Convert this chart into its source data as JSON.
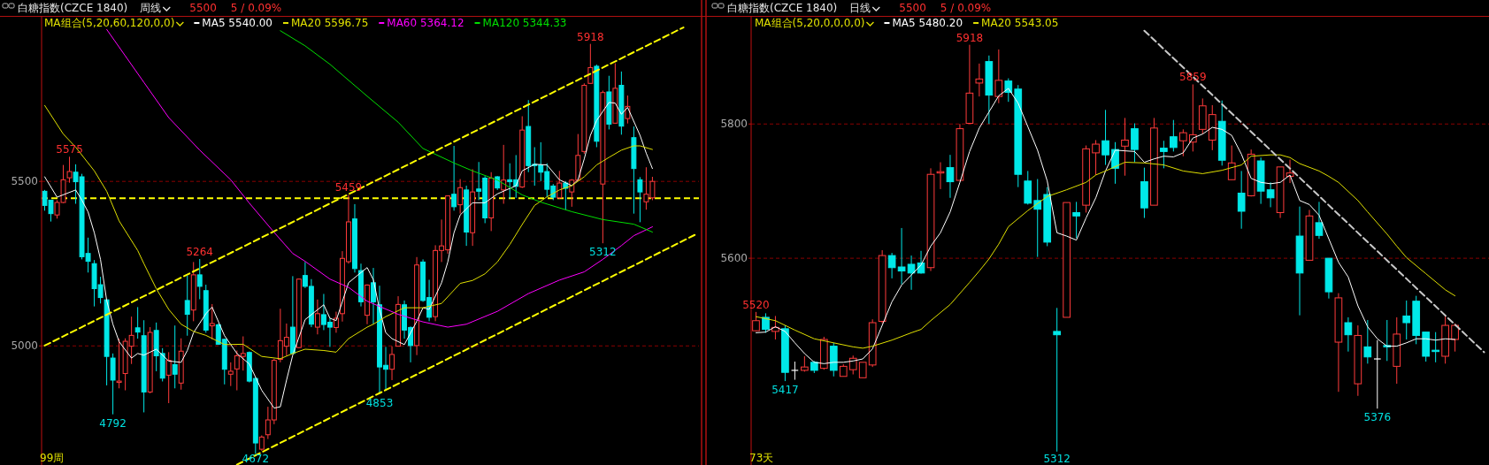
{
  "chart_data": [
    {
      "type": "candlestick",
      "title": "白糖指数(CZCE 1840)",
      "subtitle": "周线",
      "grid": "y",
      "legend": "top left",
      "tick_labels": "y",
      "marker": "none",
      "categories": [
        null,
        null,
        null,
        null,
        null,
        null,
        null,
        null,
        null,
        null,
        null,
        null,
        null,
        null,
        null,
        null,
        null,
        null,
        null,
        null,
        null,
        null,
        null,
        null,
        null,
        null,
        null,
        null,
        null,
        null,
        null,
        null,
        null,
        null,
        null,
        null,
        null,
        null,
        null,
        null,
        null,
        null,
        null,
        null,
        null,
        null,
        null,
        null,
        null,
        null,
        null,
        null,
        null,
        null,
        null,
        null,
        null,
        null,
        null,
        null,
        null,
        null,
        null,
        null,
        null,
        null,
        null,
        null,
        null,
        null,
        null,
        null,
        null,
        null,
        null,
        null,
        null,
        null,
        null,
        null,
        null,
        null,
        null,
        null,
        null,
        null,
        null,
        null,
        null,
        null,
        null,
        null,
        null,
        null,
        null,
        null,
        null,
        null,
        null,
        null,
        null,
        null,
        null,
        null,
        null,
        null
      ],
      "ylim": [
        4638,
        6003
      ],
      "yticks": [
        5000,
        5500
      ],
      "ohlc": [
        [
          5470,
          5474,
          5411,
          5427
        ],
        [
          5443,
          5443,
          5378,
          5402
        ],
        [
          5398,
          5443,
          5387,
          5436
        ],
        [
          5436,
          5550,
          5434,
          5505
        ],
        [
          5511,
          5575,
          5496,
          5530
        ],
        [
          5528,
          5552,
          5432,
          5499
        ],
        [
          5514,
          5523,
          5263,
          5271
        ],
        [
          5281,
          5329,
          5223,
          5257
        ],
        [
          5250,
          5261,
          5120,
          5174
        ],
        [
          5186,
          5210,
          5129,
          5147
        ],
        [
          5140,
          5142,
          4880,
          4968
        ],
        [
          4963,
          4977,
          4792,
          4896
        ],
        [
          4889,
          5022,
          4871,
          4893
        ],
        [
          4916,
          5023,
          4865,
          5014
        ],
        [
          4999,
          5089,
          4945,
          5032
        ],
        [
          5055,
          5118,
          5022,
          5042
        ],
        [
          5031,
          5078,
          4798,
          4860
        ],
        [
          4860,
          5057,
          4856,
          5041
        ],
        [
          5047,
          5071,
          4923,
          4970
        ],
        [
          4977,
          4993,
          4892,
          4902
        ],
        [
          4911,
          4981,
          4826,
          4956
        ],
        [
          4943,
          5062,
          4871,
          4914
        ],
        [
          4887,
          5023,
          4867,
          4984
        ],
        [
          5138,
          5214,
          5031,
          5096
        ],
        [
          5109,
          5255,
          5075,
          5216
        ],
        [
          5216,
          5264,
          5142,
          5181
        ],
        [
          5168,
          5186,
          5040,
          5048
        ],
        [
          5061,
          5127,
          5020,
          5068
        ],
        [
          5064,
          5068,
          5003,
          5005
        ],
        [
          5020,
          5022,
          4883,
          4929
        ],
        [
          4914,
          4950,
          4878,
          4923
        ],
        [
          4930,
          4986,
          4865,
          4970
        ],
        [
          4968,
          5029,
          4925,
          4977
        ],
        [
          4980,
          4983,
          4889,
          4893
        ],
        [
          4901,
          4905,
          4672,
          4705
        ],
        [
          4686,
          4728,
          4681,
          4723
        ],
        [
          4730,
          4815,
          4717,
          4775
        ],
        [
          4775,
          4961,
          4762,
          4956
        ],
        [
          4959,
          5113,
          4950,
          5016
        ],
        [
          4999,
          5068,
          4970,
          5026
        ],
        [
          5057,
          5212,
          4975,
          4977
        ],
        [
          4995,
          5205,
          4993,
          5203
        ],
        [
          5214,
          5255,
          5176,
          5181
        ],
        [
          5181,
          5203,
          5057,
          5066
        ],
        [
          5057,
          5141,
          5035,
          5098
        ],
        [
          5095,
          5158,
          5048,
          5065
        ],
        [
          5072,
          5084,
          4997,
          5057
        ],
        [
          5056,
          5104,
          5040,
          5084
        ],
        [
          5098,
          5288,
          5074,
          5266
        ],
        [
          5256,
          5459,
          5250,
          5377
        ],
        [
          5386,
          5431,
          5223,
          5235
        ],
        [
          5229,
          5250,
          5120,
          5134
        ],
        [
          5093,
          5187,
          5066,
          5185
        ],
        [
          5192,
          5237,
          5066,
          5134
        ],
        [
          5125,
          5183,
          4853,
          4936
        ],
        [
          4941,
          4997,
          4865,
          4929
        ],
        [
          4929,
          4999,
          4896,
          4974
        ],
        [
          4999,
          5151,
          4999,
          5126
        ],
        [
          5125,
          5138,
          5022,
          5048
        ],
        [
          5056,
          5059,
          4950,
          5001
        ],
        [
          5001,
          5270,
          4972,
          5246
        ],
        [
          5255,
          5263,
          5134,
          5138
        ],
        [
          5147,
          5201,
          5075,
          5087
        ],
        [
          5089,
          5306,
          5075,
          5290
        ],
        [
          5290,
          5384,
          5255,
          5304
        ],
        [
          5292,
          5457,
          5280,
          5456
        ],
        [
          5461,
          5608,
          5411,
          5423
        ],
        [
          5429,
          5507,
          5402,
          5481
        ],
        [
          5474,
          5487,
          5304,
          5346
        ],
        [
          5344,
          5537,
          5304,
          5468
        ],
        [
          5477,
          5559,
          5443,
          5470
        ],
        [
          5510,
          5516,
          5373,
          5389
        ],
        [
          5389,
          5528,
          5349,
          5510
        ],
        [
          5514,
          5516,
          5474,
          5480
        ],
        [
          5474,
          5611,
          5432,
          5504
        ],
        [
          5505,
          5555,
          5447,
          5499
        ],
        [
          5505,
          5580,
          5450,
          5485
        ],
        [
          5483,
          5698,
          5480,
          5656
        ],
        [
          5667,
          5747,
          5528,
          5548
        ],
        [
          5552,
          5604,
          5487,
          5548
        ],
        [
          5550,
          5619,
          5501,
          5528
        ],
        [
          5530,
          5555,
          5452,
          5476
        ],
        [
          5486,
          5492,
          5443,
          5452
        ],
        [
          5450,
          5532,
          5447,
          5495
        ],
        [
          5495,
          5501,
          5414,
          5479
        ],
        [
          5468,
          5507,
          5423,
          5504
        ],
        [
          5504,
          5644,
          5501,
          5579
        ],
        [
          5591,
          5798,
          5584,
          5792
        ],
        [
          5798,
          5918,
          5797,
          5846
        ],
        [
          5850,
          5855,
          5604,
          5622
        ],
        [
          5492,
          5776,
          5312,
          5770
        ],
        [
          5772,
          5821,
          5658,
          5674
        ],
        [
          5677,
          5859,
          5676,
          5783
        ],
        [
          5792,
          5834,
          5642,
          5668
        ],
        [
          5691,
          5761,
          5676,
          5728
        ],
        [
          5633,
          5667,
          5402,
          5539
        ],
        [
          5505,
          5513,
          5376,
          5468
        ],
        [
          5438,
          5543,
          5414,
          5461
        ],
        [
          5450,
          5514,
          5443,
          5500
        ],
        null,
        null,
        null,
        null,
        null,
        null,
        null
      ],
      "series": [
        {
          "name": "MA5 5540.00",
          "type": "line",
          "color": "#ffffff",
          "values": [
            5514,
            null,
            5452,
            null,
            null,
            5474,
            5443,
            5407,
            5344,
            5263,
            5138,
            5066,
            5013,
            null,
            4963,
            4977,
            4972,
            null,
            4990,
            null,
            4954,
            null,
            4950,
            4986,
            5040,
            null,
            5098,
            5118,
            null,
            5031,
            null,
            4977,
            null,
            4945,
            null,
            4865,
            null,
            4811,
            4815,
            4896,
            4972,
            null,
            5080,
            null,
            null,
            5125,
            5084,
            5077,
            null,
            5192,
            null,
            5223,
            5238,
            5201,
            5111,
            5040,
            5022,
            null,
            5004,
            null,
            5075,
            5116,
            5111,
            null,
            5192,
            5255,
            5344,
            5398,
            null,
            5435,
            null,
            5435,
            null,
            5462,
            null,
            null,
            5487,
            5532,
            null,
            5552,
            null,
            5550,
            null,
            5505,
            null,
            5487,
            5505,
            5568,
            5640,
            5685,
            null,
            5740,
            5738,
            5704,
            5725,
            null,
            5640,
            5586,
            5539,
            null,
            null,
            null,
            null,
            null,
            null,
            null
          ]
        },
        {
          "name": "MA20 5596.75",
          "type": "line",
          "color": "#e0e000",
          "values": [
            5731,
            null,
            null,
            5644,
            null,
            5604,
            null,
            null,
            5532,
            null,
            5470,
            null,
            5380,
            null,
            null,
            5290,
            5250,
            null,
            5174,
            null,
            5111,
            null,
            5066,
            null,
            5044,
            null,
            5032,
            null,
            null,
            5004,
            null,
            null,
            5005,
            null,
            null,
            4968,
            null,
            null,
            4961,
            null,
            4977,
            null,
            4990,
            null,
            null,
            4986,
            null,
            4981,
            null,
            5022,
            null,
            null,
            5057,
            5066,
            null,
            5089,
            null,
            null,
            5116,
            null,
            null,
            5116,
            null,
            null,
            5129,
            null,
            null,
            5190,
            null,
            5199,
            null,
            5219,
            null,
            5255,
            null,
            5308,
            null,
            5369,
            null,
            5427,
            null,
            5453,
            null,
            5474,
            null,
            5487,
            null,
            5514,
            null,
            5550,
            null,
            5573,
            null,
            5595,
            null,
            5608,
            5608,
            null,
            5597,
            null,
            null,
            null,
            null,
            null,
            null,
            null
          ]
        },
        {
          "name": "MA60 5364.12",
          "type": "line",
          "color": "#ff00ff",
          "values": [
            null,
            null,
            null,
            null,
            null,
            null,
            null,
            null,
            null,
            null,
            5962,
            null,
            null,
            null,
            null,
            null,
            5801,
            null,
            null,
            null,
            5694,
            null,
            null,
            null,
            null,
            5595,
            null,
            null,
            null,
            null,
            5505,
            null,
            null,
            5434,
            null,
            null,
            null,
            5345,
            null,
            null,
            5281,
            null,
            5257,
            null,
            null,
            null,
            5203,
            null,
            null,
            5178,
            null,
            null,
            5136,
            null,
            null,
            null,
            null,
            5096,
            null,
            null,
            null,
            5073,
            null,
            null,
            null,
            5057,
            null,
            null,
            5066,
            null,
            null,
            null,
            null,
            5105,
            null,
            null,
            null,
            null,
            5159,
            null,
            null,
            null,
            null,
            5200,
            null,
            null,
            null,
            5225,
            null,
            null,
            5263,
            null,
            null,
            5305,
            null,
            5335,
            null,
            null,
            5362,
            null,
            null,
            null,
            null,
            null,
            null,
            null
          ]
        },
        {
          "name": "MA120 5344.33",
          "type": "line",
          "color": "#00e000",
          "values": [
            null,
            null,
            null,
            null,
            null,
            null,
            null,
            null,
            null,
            null,
            null,
            null,
            null,
            null,
            null,
            null,
            null,
            null,
            null,
            null,
            null,
            null,
            null,
            null,
            null,
            null,
            null,
            null,
            null,
            null,
            null,
            null,
            null,
            null,
            null,
            null,
            null,
            null,
            5958,
            null,
            null,
            null,
            5912,
            null,
            null,
            null,
            5856,
            null,
            null,
            null,
            null,
            null,
            5759,
            null,
            null,
            null,
            null,
            5680,
            null,
            null,
            null,
            5600,
            null,
            null,
            null,
            null,
            5556,
            null,
            null,
            5532,
            null,
            null,
            null,
            5504,
            null,
            null,
            null,
            5459,
            null,
            null,
            5437,
            null,
            null,
            null,
            null,
            5408,
            null,
            null,
            null,
            null,
            5384,
            null,
            null,
            null,
            null,
            5370,
            null,
            null,
            5346,
            null,
            null,
            null,
            null,
            null,
            null,
            null
          ]
        },
        {
          "type": "line",
          "color": "#ffff00",
          "line_style": "dashed",
          "values": [
            5001,
            null,
            null,
            null,
            null,
            null,
            null,
            null,
            null,
            null,
            null,
            null,
            null,
            null,
            null,
            null,
            null,
            null,
            null,
            null,
            null,
            null,
            null,
            null,
            null,
            null,
            null,
            null,
            null,
            null,
            null,
            null,
            null,
            null,
            null,
            null,
            null,
            null,
            null,
            null,
            null,
            null,
            null,
            null,
            null,
            null,
            null,
            null,
            null,
            null,
            null,
            null,
            null,
            null,
            null,
            null,
            null,
            null,
            null,
            null,
            null,
            null,
            null,
            null,
            null,
            null,
            null,
            null,
            null,
            null,
            null,
            null,
            null,
            null,
            null,
            null,
            null,
            null,
            null,
            null,
            null,
            null,
            null,
            null,
            null,
            null,
            null,
            null,
            null,
            null,
            null,
            null,
            null,
            null,
            null,
            null,
            null,
            null,
            null,
            null,
            null,
            null,
            null,
            5968,
            null,
            null
          ]
        },
        {
          "type": "line",
          "color": "#ffff00",
          "line_style": "dashed",
          "values": [
            null,
            null,
            null,
            null,
            null,
            null,
            null,
            null,
            null,
            null,
            null,
            null,
            null,
            null,
            null,
            null,
            null,
            null,
            null,
            null,
            null,
            null,
            null,
            null,
            null,
            null,
            null,
            null,
            null,
            null,
            null,
            4639,
            null,
            null,
            null,
            null,
            null,
            null,
            null,
            null,
            null,
            null,
            null,
            null,
            null,
            null,
            null,
            null,
            null,
            null,
            null,
            null,
            null,
            null,
            null,
            null,
            null,
            null,
            null,
            null,
            null,
            null,
            null,
            null,
            null,
            null,
            null,
            null,
            null,
            null,
            null,
            null,
            null,
            null,
            null,
            null,
            null,
            null,
            null,
            null,
            null,
            null,
            null,
            null,
            null,
            null,
            null,
            null,
            null,
            null,
            null,
            null,
            null,
            null,
            null,
            null,
            null,
            null,
            null,
            null,
            null,
            null,
            null,
            null,
            null,
            5339
          ]
        }
      ],
      "ref_lines": [
        {
          "axis": "y",
          "value": 5449,
          "color": "#ffff00",
          "line_style": "dashed"
        }
      ],
      "annotations": [
        "5500",
        "5 / 0.09%",
        "MA组合(5,20,60,120,0,0)",
        "99周",
        {
          "text": "5575",
          "y": 5575
        },
        {
          "text": "5264",
          "y": 5264
        },
        {
          "text": "5459",
          "y": 5459
        },
        {
          "text": "5918",
          "y": 5918
        },
        {
          "text": "4792",
          "y": 4792
        },
        {
          "text": "4672",
          "y": 4672
        },
        {
          "text": "4853",
          "y": 4853
        },
        {
          "text": "5312",
          "y": 5312
        }
      ]
    },
    {
      "type": "candlestick",
      "title": "白糖指数(CZCE 1840)",
      "subtitle": "日线",
      "grid": "y",
      "legend": "top left",
      "tick_labels": "y",
      "marker": "none",
      "categories": [
        null,
        null,
        null,
        null,
        null,
        null,
        null,
        null,
        null,
        null,
        null,
        null,
        null,
        null,
        null,
        null,
        null,
        null,
        null,
        null,
        null,
        null,
        null,
        null,
        null,
        null,
        null,
        null,
        null,
        null,
        null,
        null,
        null,
        null,
        null,
        null,
        null,
        null,
        null,
        null,
        null,
        null,
        null,
        null,
        null,
        null,
        null,
        null,
        null,
        null,
        null,
        null,
        null,
        null,
        null,
        null,
        null,
        null,
        null,
        null,
        null,
        null,
        null,
        null,
        null,
        null,
        null,
        null,
        null,
        null,
        null,
        null,
        null,
        null,
        null,
        null
      ],
      "ylim": [
        5292,
        5961
      ],
      "yticks": [
        5600,
        5800
      ],
      "ohlc": [
        [
          5492,
          5520,
          5491,
          5507
        ],
        [
          5512,
          5518,
          5489,
          5494
        ],
        [
          5491,
          5514,
          5479,
          5497
        ],
        [
          5495,
          5500,
          5417,
          5430
        ],
        [
          5433,
          5446,
          5419,
          5433
        ],
        [
          5433,
          5454,
          5431,
          5438
        ],
        [
          5445,
          5447,
          5429,
          5433
        ],
        [
          5436,
          5483,
          5434,
          5479
        ],
        [
          5469,
          5474,
          5424,
          5433
        ],
        [
          5424,
          5442,
          5424,
          5439
        ],
        [
          5434,
          5455,
          5427,
          5451
        ],
        [
          5422,
          5445,
          5422,
          5445
        ],
        [
          5441,
          5509,
          5438,
          5504
        ],
        [
          5506,
          5612,
          5503,
          5604
        ],
        [
          5604,
          5608,
          5570,
          5586
        ],
        [
          5587,
          5645,
          5561,
          5581
        ],
        [
          5591,
          5604,
          5553,
          5578
        ],
        [
          5593,
          5611,
          5577,
          5578
        ],
        [
          5586,
          5734,
          5581,
          5725
        ],
        [
          5727,
          5743,
          5703,
          5729
        ],
        [
          5735,
          5754,
          5690,
          5714
        ],
        [
          5716,
          5800,
          5716,
          5793
        ],
        [
          5801,
          5918,
          5800,
          5846
        ],
        [
          5861,
          5890,
          5841,
          5867
        ],
        [
          5893,
          5902,
          5800,
          5843
        ],
        [
          5841,
          5911,
          5831,
          5865
        ],
        [
          5864,
          5868,
          5833,
          5847
        ],
        [
          5852,
          5858,
          5706,
          5725
        ],
        [
          5715,
          5730,
          5680,
          5682
        ],
        [
          5686,
          5718,
          5602,
          5673
        ],
        [
          5695,
          5706,
          5618,
          5624
        ],
        [
          5491,
          5526,
          5312,
          5486
        ],
        [
          5512,
          5683,
          5512,
          5683
        ],
        [
          5668,
          5684,
          5630,
          5663
        ],
        [
          5679,
          5768,
          5668,
          5763
        ],
        [
          5757,
          5776,
          5724,
          5770
        ],
        [
          5775,
          5821,
          5739,
          5754
        ],
        [
          5762,
          5773,
          5711,
          5734
        ],
        [
          5767,
          5809,
          5723,
          5776
        ],
        [
          5793,
          5801,
          5743,
          5762
        ],
        [
          5714,
          5735,
          5660,
          5675
        ],
        [
          5679,
          5809,
          5679,
          5794
        ],
        [
          5764,
          5775,
          5734,
          5759
        ],
        [
          5781,
          5806,
          5759,
          5765
        ],
        [
          5775,
          5792,
          5752,
          5787
        ],
        [
          5773,
          5859,
          5759,
          5784
        ],
        [
          5792,
          5838,
          5785,
          5827
        ],
        [
          5776,
          5828,
          5761,
          5814
        ],
        [
          5804,
          5835,
          5738,
          5746
        ],
        [
          5717,
          5768,
          5717,
          5742
        ],
        [
          5697,
          5730,
          5644,
          5670
        ],
        [
          5693,
          5762,
          5692,
          5755
        ],
        [
          5745,
          5750,
          5681,
          5700
        ],
        [
          5702,
          5713,
          5676,
          5690
        ],
        [
          5668,
          5736,
          5660,
          5736
        ],
        [
          5722,
          5747,
          5712,
          5727
        ],
        [
          5633,
          5677,
          5515,
          5578
        ],
        [
          5597,
          5672,
          5597,
          5663
        ],
        [
          5653,
          5684,
          5629,
          5634
        ],
        [
          5600,
          5600,
          5540,
          5550
        ],
        [
          5475,
          5548,
          5401,
          5541
        ],
        [
          5504,
          5512,
          5461,
          5486
        ],
        [
          5413,
          5500,
          5395,
          5485
        ],
        [
          5468,
          5508,
          5443,
          5453
        ],
        [
          5450,
          5478,
          5376,
          5450
        ],
        [
          5470,
          5508,
          5447,
          5468
        ],
        [
          5439,
          5512,
          5413,
          5487
        ],
        [
          5514,
          5537,
          5479,
          5504
        ],
        [
          5536,
          5544,
          5472,
          5485
        ],
        [
          5490,
          5490,
          5446,
          5454
        ],
        [
          5463,
          5490,
          5445,
          5461
        ],
        [
          5454,
          5514,
          5443,
          5500
        ],
        [
          5479,
          5503,
          5461,
          5500
        ],
        null,
        null,
        null
      ],
      "series": [
        {
          "name": "MA5 5480.20",
          "type": "line",
          "color": "#ffffff",
          "values": [
            5489,
            5490,
            5498,
            5491,
            5474,
            5458,
            5445,
            5443,
            5445,
            5445,
            5447,
            5450,
            5465,
            5500,
            5535,
            5560,
            5575,
            5590,
            5618,
            5638,
            5669,
            5713,
            5759,
            5794,
            5818,
            5842,
            5853,
            5831,
            5796,
            5761,
            5715,
            5638,
            5633,
            5627,
            5660,
            5690,
            5730,
            5761,
            5760,
            5759,
            5743,
            5748,
            5752,
            5751,
            5757,
            5779,
            5785,
            5795,
            5792,
            5783,
            5755,
            5719,
            5713,
            5711,
            5713,
            5724,
            5686,
            5680,
            5664,
            5629,
            5594,
            5572,
            5529,
            5498,
            5480,
            5469,
            5469,
            5474,
            5480,
            5480,
            5478,
            5480,
            5479,
            null,
            null,
            null
          ]
        },
        {
          "name": "MA20 5543.05",
          "type": "line",
          "color": "#e0e000",
          "values": [
            5513,
            null,
            5507,
            null,
            5493,
            null,
            5480,
            null,
            5474,
            null,
            5468,
            5466,
            5469,
            null,
            5478,
            null,
            5489,
            5494,
            5507,
            null,
            5531,
            null,
            5564,
            5581,
            5599,
            5621,
            5647,
            null,
            5671,
            null,
            5692,
            null,
            5702,
            null,
            5713,
            5724,
            5730,
            null,
            5743,
            null,
            5742,
            null,
            5739,
            null,
            5730,
            null,
            5726,
            null,
            5731,
            null,
            5739,
            5752,
            null,
            5754,
            5754,
            5750,
            5741,
            null,
            5730,
            5722,
            5713,
            null,
            5686,
            5669,
            null,
            5636,
            5618,
            5601,
            null,
            5577,
            null,
            5553,
            5544,
            null,
            null,
            null
          ]
        },
        {
          "type": "line",
          "color": "#c8c8c8",
          "line_style": "dashed",
          "values": [
            null,
            null,
            null,
            null,
            null,
            null,
            null,
            null,
            null,
            null,
            null,
            null,
            null,
            null,
            null,
            null,
            null,
            null,
            null,
            null,
            null,
            null,
            null,
            null,
            null,
            null,
            null,
            null,
            null,
            null,
            null,
            null,
            null,
            null,
            null,
            null,
            null,
            null,
            null,
            null,
            5939,
            null,
            null,
            null,
            null,
            null,
            null,
            null,
            null,
            null,
            null,
            null,
            null,
            null,
            null,
            null,
            null,
            null,
            null,
            null,
            null,
            null,
            null,
            null,
            null,
            null,
            null,
            null,
            null,
            null,
            null,
            null,
            null,
            null,
            null,
            5460
          ]
        }
      ],
      "annotations": [
        "5500",
        "5 / 0.09%",
        "MA组合(5,20,0,0,0,0)",
        "73天",
        {
          "text": "5918",
          "y": 5918
        },
        {
          "text": "5520",
          "y": 5520
        },
        {
          "text": "5417",
          "y": 5417
        },
        {
          "text": "5312",
          "y": 5312
        },
        {
          "text": "5859",
          "y": 5859
        },
        {
          "text": "5376",
          "y": 5376
        }
      ]
    }
  ]
}
